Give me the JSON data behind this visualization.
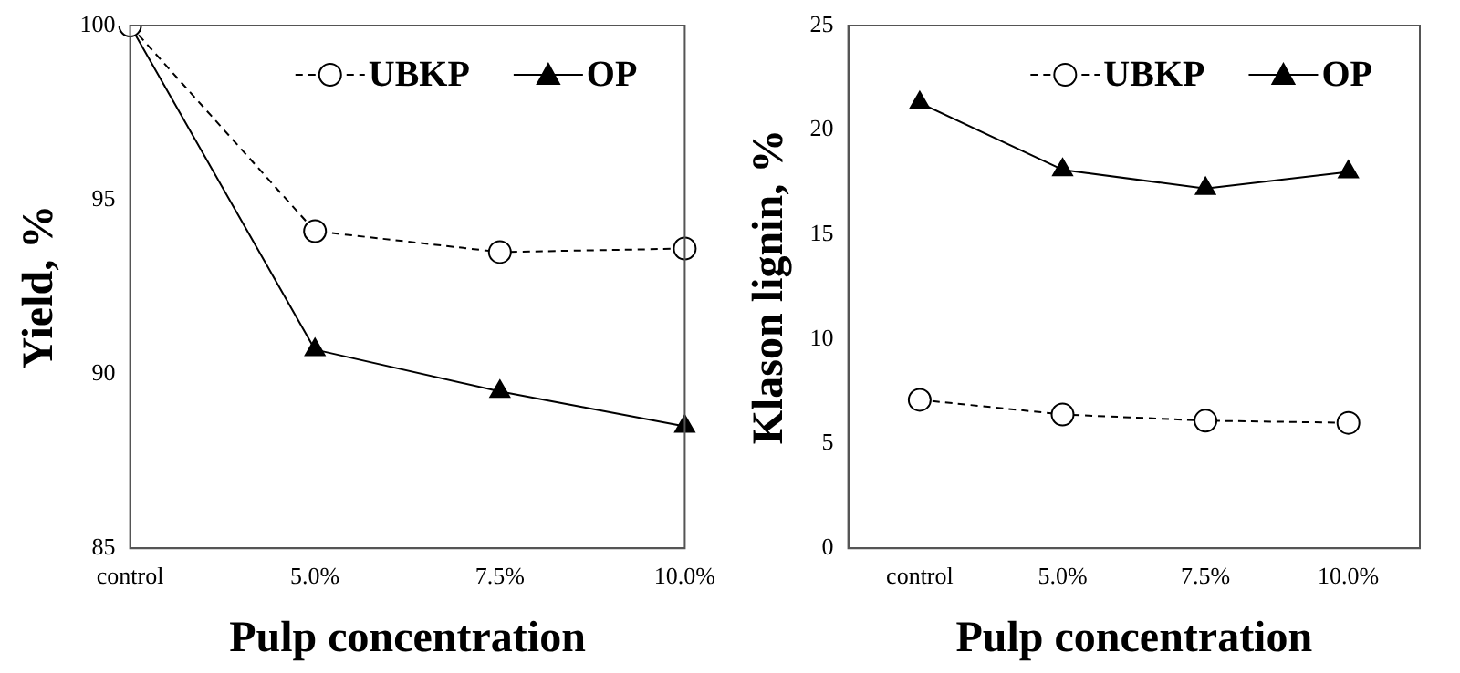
{
  "chart_data": [
    {
      "type": "line",
      "xlabel": "Pulp concentration",
      "ylabel": "Yield, %",
      "categories": [
        "control",
        "5.0%",
        "7.5%",
        "10.0%"
      ],
      "series": [
        {
          "name": "UBKP",
          "color": "#000000",
          "values": [
            100,
            94.1,
            93.5,
            93.6
          ],
          "marker": "circle",
          "line_style": "dashed"
        },
        {
          "name": "OP",
          "color": "#000000",
          "values": [
            100,
            90.7,
            89.5,
            88.5
          ],
          "marker": "triangle",
          "line_style": "solid"
        }
      ],
      "ylim": [
        85,
        100
      ],
      "yticks": [
        85,
        90,
        95,
        100
      ],
      "grid": false,
      "legend": "top right"
    },
    {
      "type": "line",
      "xlabel": "Pulp concentration",
      "ylabel": "Klason lignin, %",
      "categories": [
        "control",
        "5.0%",
        "7.5%",
        "10.0%"
      ],
      "series": [
        {
          "name": "UBKP",
          "color": "#000000",
          "values": [
            7.1,
            6.4,
            6.1,
            6.0
          ],
          "marker": "circle",
          "line_style": "dashed"
        },
        {
          "name": "OP",
          "color": "#000000",
          "values": [
            21.3,
            18.1,
            17.2,
            18.0
          ],
          "marker": "triangle",
          "line_style": "solid"
        }
      ],
      "ylim": [
        0,
        25
      ],
      "yticks": [
        0,
        5,
        10,
        15,
        20,
        25
      ],
      "grid": false,
      "legend": "top right"
    }
  ]
}
